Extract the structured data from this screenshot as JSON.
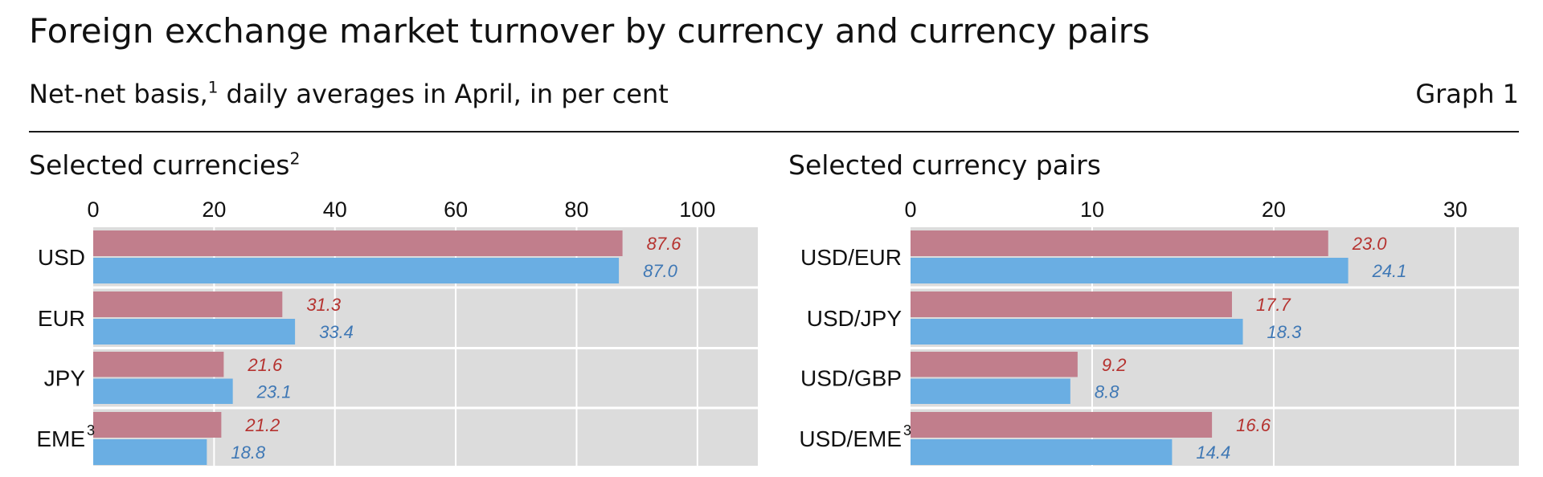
{
  "header": {
    "title": "Foreign exchange market turnover by currency and currency pairs",
    "subtitle": "Net-net basis,",
    "subtitle_sup": "1",
    "subtitle_rest": " daily averages in April, in per cent",
    "graph_label": "Graph 1"
  },
  "colors": {
    "series_2013": "#c17e8c",
    "series_2016": "#6aaee3",
    "label_2013": "#b5322f",
    "label_2016": "#3f78b5",
    "plot_bg": "#dcdcdc",
    "grid": "#ffffff"
  },
  "chart_data": [
    {
      "type": "bar",
      "orientation": "horizontal",
      "title": "Selected currencies",
      "title_sup": "2",
      "categories": [
        "USD",
        "EUR",
        "JPY",
        "EME"
      ],
      "category_sups": [
        "",
        "",
        "",
        "3"
      ],
      "series": [
        {
          "values": [
            87.6,
            31.3,
            21.6,
            21.2
          ]
        },
        {
          "values": [
            87.0,
            33.4,
            23.1,
            18.8
          ]
        }
      ],
      "xlim": [
        0,
        110
      ],
      "ticks": [
        0,
        20,
        40,
        60,
        80,
        100
      ],
      "tick_labels": [
        "0",
        "20",
        "40",
        "60",
        "80",
        "100"
      ],
      "value_labels": [
        [
          "87.6",
          "31.3",
          "21.6",
          "21.2"
        ],
        [
          "87.0",
          "33.4",
          "23.1",
          "18.8"
        ]
      ],
      "grid": true,
      "axis_position": "top"
    },
    {
      "type": "bar",
      "orientation": "horizontal",
      "title": "Selected currency pairs",
      "categories": [
        "USD/EUR",
        "USD/JPY",
        "USD/GBP",
        "USD/EME"
      ],
      "category_sups": [
        "",
        "",
        "",
        "3"
      ],
      "series": [
        {
          "values": [
            23.0,
            17.7,
            9.2,
            16.6
          ]
        },
        {
          "values": [
            24.1,
            18.3,
            8.8,
            14.4
          ]
        }
      ],
      "xlim": [
        0,
        33.5
      ],
      "ticks": [
        0,
        10,
        20,
        30
      ],
      "tick_labels": [
        "0",
        "10",
        "20",
        "30"
      ],
      "value_labels": [
        [
          "23.0",
          "17.7",
          "9.2",
          "16.6"
        ],
        [
          "24.1",
          "18.3",
          "8.8",
          "14.4"
        ]
      ],
      "grid": true,
      "axis_position": "top"
    }
  ]
}
